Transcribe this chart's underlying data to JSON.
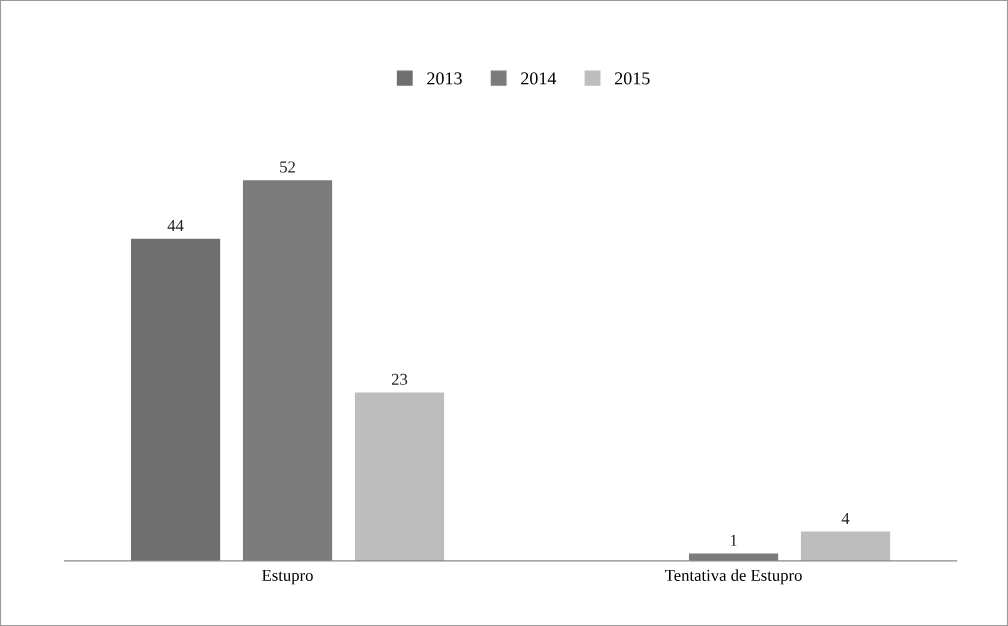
{
  "chart_data": {
    "type": "bar",
    "categories": [
      "Estupro",
      "Tentativa de Estupro"
    ],
    "series": [
      {
        "name": "2013",
        "color": "#6f6f6f",
        "values": [
          44,
          null
        ]
      },
      {
        "name": "2014",
        "color": "#7b7b7b",
        "values": [
          52,
          1
        ]
      },
      {
        "name": "2015",
        "color": "#bdbdbd",
        "values": [
          23,
          4
        ]
      }
    ],
    "data_labels": true,
    "legend": "top",
    "grid": false,
    "tick_labels": "x"
  }
}
